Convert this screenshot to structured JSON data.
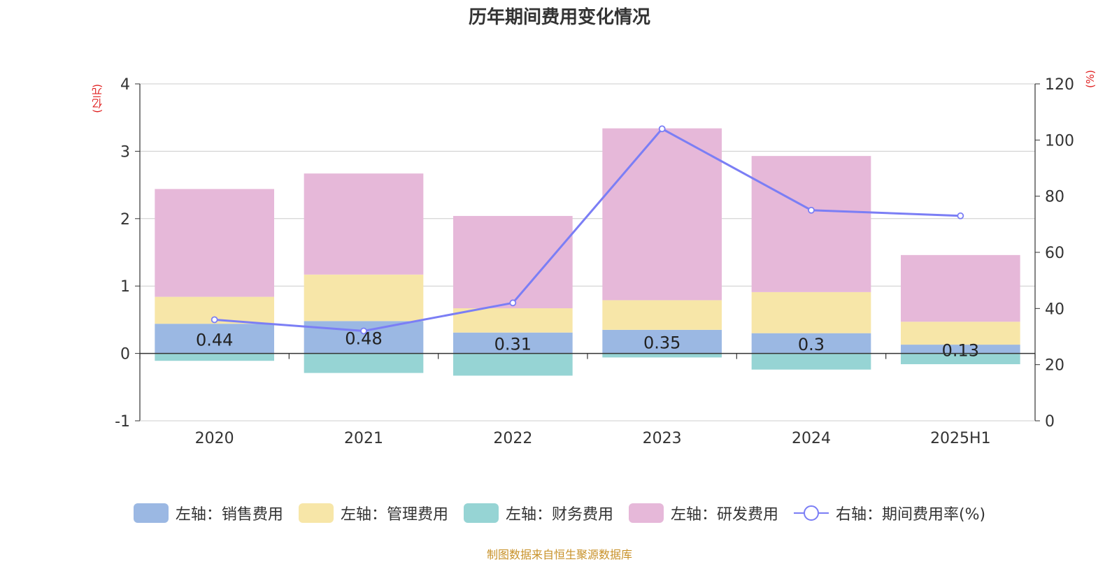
{
  "chart_data": {
    "type": "bar",
    "title": "历年期间费用变化情况",
    "left_unit": "(亿元)",
    "right_unit": "(%)",
    "categories": [
      "2020",
      "2021",
      "2022",
      "2023",
      "2024",
      "2025H1"
    ],
    "left_axis": {
      "ylim": [
        -1,
        4
      ],
      "ticks": [
        "-1",
        "0",
        "1",
        "2",
        "3",
        "4"
      ]
    },
    "right_axis": {
      "ylim": [
        0,
        120
      ],
      "ticks": [
        "0",
        "20",
        "40",
        "60",
        "80",
        "100",
        "120"
      ]
    },
    "series": [
      {
        "name": "左轴：销售费用",
        "color": "#9bb8e3",
        "values": [
          0.44,
          0.48,
          0.31,
          0.35,
          0.3,
          0.13
        ],
        "data_labels": [
          "0.44",
          "0.48",
          "0.31",
          "0.35",
          "0.3",
          "0.13"
        ]
      },
      {
        "name": "左轴：管理费用",
        "color": "#f7e6a8",
        "values": [
          0.4,
          0.69,
          0.36,
          0.44,
          0.61,
          0.34
        ]
      },
      {
        "name": "左轴：财务费用",
        "color": "#96d4d4",
        "values": [
          -0.11,
          -0.29,
          -0.33,
          -0.06,
          -0.24,
          -0.16
        ]
      },
      {
        "name": "左轴：研发费用",
        "color": "#e6b8d9",
        "values": [
          1.6,
          1.5,
          1.37,
          2.55,
          2.02,
          0.99
        ]
      }
    ],
    "line_series": {
      "name": "右轴：期间费用率(%)",
      "color": "#7b7ef5",
      "values": [
        36,
        32,
        42,
        104,
        75,
        73
      ]
    },
    "grid": true,
    "legend_position": "bottom"
  },
  "source_note": "制图数据来自恒生聚源数据库"
}
